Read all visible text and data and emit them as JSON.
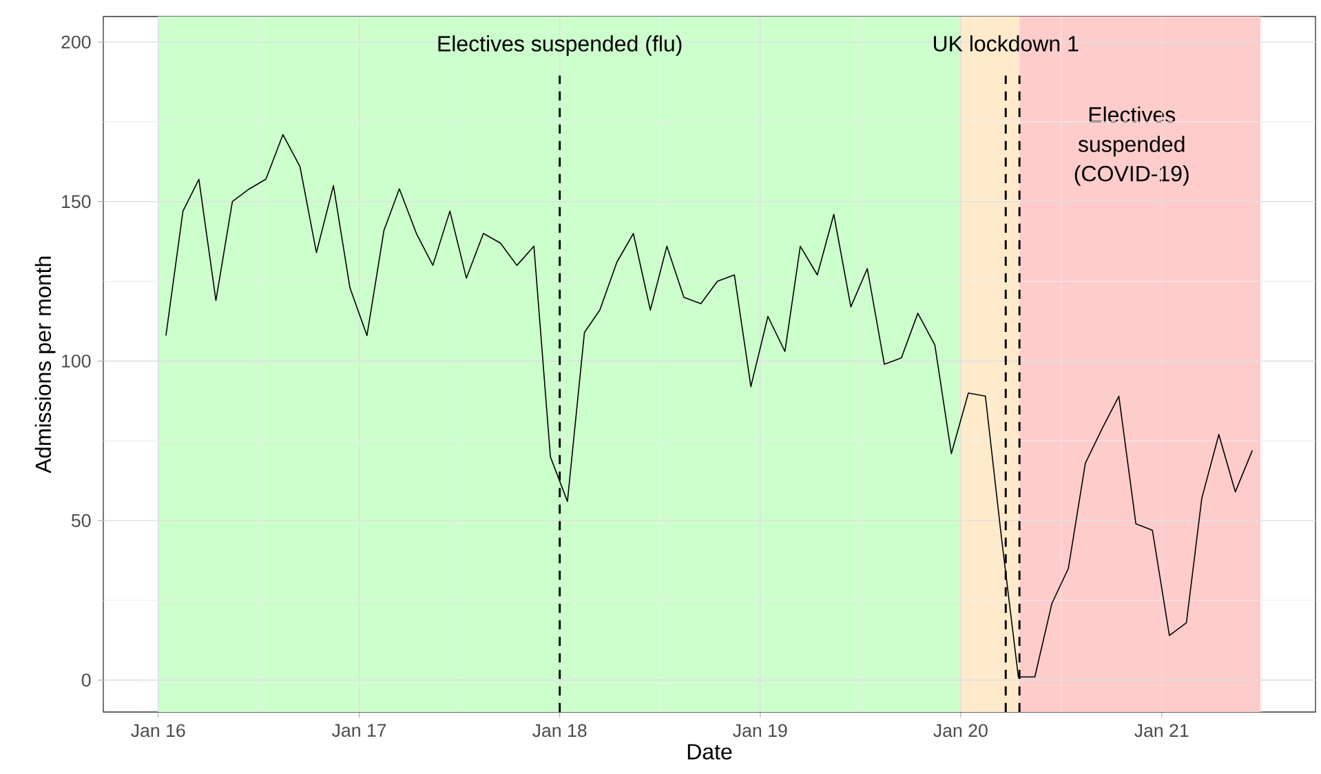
{
  "chart_data": {
    "type": "line",
    "xlabel": "Date",
    "ylabel": "Admissions per month",
    "x": [
      "2016-01-15",
      "2016-02-15",
      "2016-03-15",
      "2016-04-15",
      "2016-05-15",
      "2016-06-15",
      "2016-07-15",
      "2016-08-15",
      "2016-09-15",
      "2016-10-15",
      "2016-11-15",
      "2016-12-15",
      "2017-01-15",
      "2017-02-15",
      "2017-03-15",
      "2017-04-15",
      "2017-05-15",
      "2017-06-15",
      "2017-07-15",
      "2017-08-15",
      "2017-09-15",
      "2017-10-15",
      "2017-11-15",
      "2017-12-15",
      "2018-01-15",
      "2018-02-15",
      "2018-03-15",
      "2018-04-15",
      "2018-05-15",
      "2018-06-15",
      "2018-07-15",
      "2018-08-15",
      "2018-09-15",
      "2018-10-15",
      "2018-11-15",
      "2018-12-15",
      "2019-01-15",
      "2019-02-15",
      "2019-03-15",
      "2019-04-15",
      "2019-05-15",
      "2019-06-15",
      "2019-07-15",
      "2019-08-15",
      "2019-09-15",
      "2019-10-15",
      "2019-11-15",
      "2019-12-15",
      "2020-01-15",
      "2020-02-15",
      "2020-03-15",
      "2020-04-15",
      "2020-05-15",
      "2020-06-15",
      "2020-07-15",
      "2020-08-15",
      "2020-09-15",
      "2020-10-15",
      "2020-11-15",
      "2020-12-15",
      "2021-01-15",
      "2021-02-15",
      "2021-03-15",
      "2021-04-15",
      "2021-05-15",
      "2021-06-15"
    ],
    "series": [
      {
        "color": "#000000",
        "values": [
          108,
          147,
          157,
          119,
          150,
          154,
          157,
          171,
          161,
          134,
          155,
          123,
          108,
          141,
          154,
          140,
          130,
          147,
          126,
          140,
          137,
          130,
          136,
          70,
          56,
          109,
          116,
          131,
          140,
          116,
          136,
          120,
          118,
          125,
          127,
          92,
          114,
          103,
          136,
          127,
          146,
          117,
          129,
          99,
          101,
          115,
          105,
          71,
          90,
          89,
          45,
          1,
          1,
          24,
          35,
          68,
          79,
          89,
          49,
          47,
          14,
          18,
          57,
          77,
          59,
          72
        ]
      }
    ],
    "xlim": [
      "2015-09-23",
      "2021-10-08"
    ],
    "ylim": [
      -10,
      208
    ],
    "xticks": [
      {
        "value": "2016-01-01",
        "label": "Jan 16"
      },
      {
        "value": "2017-01-01",
        "label": "Jan 17"
      },
      {
        "value": "2018-01-01",
        "label": "Jan 18"
      },
      {
        "value": "2019-01-01",
        "label": "Jan 19"
      },
      {
        "value": "2020-01-01",
        "label": "Jan 20"
      },
      {
        "value": "2021-01-01",
        "label": "Jan 21"
      }
    ],
    "yticks": [
      0,
      50,
      100,
      150,
      200
    ],
    "grid": true,
    "line_style": "solid",
    "bands": [
      {
        "axis": "x",
        "from": "2016-01-01",
        "to": "2020-01-01",
        "color": "#ccffcc"
      },
      {
        "axis": "x",
        "from": "2020-01-01",
        "to": "2020-04-17",
        "color": "#ffebcc"
      },
      {
        "axis": "x",
        "from": "2020-04-17",
        "to": "2021-06-30",
        "color": "#ffcccc",
        "label": "Electives suspended (COVID-19)"
      }
    ],
    "ref_lines": [
      {
        "axis": "x",
        "value": "2018-01-01",
        "label": "Electives suspended (flu)",
        "color": "#000000",
        "line_style": "dashed"
      },
      {
        "axis": "x",
        "value": "2020-03-23",
        "label": "UK lockdown 1",
        "color": "#000000",
        "line_style": "dashed"
      },
      {
        "axis": "x",
        "value": "2020-04-17",
        "color": "#000000",
        "line_style": "dashed"
      }
    ]
  }
}
